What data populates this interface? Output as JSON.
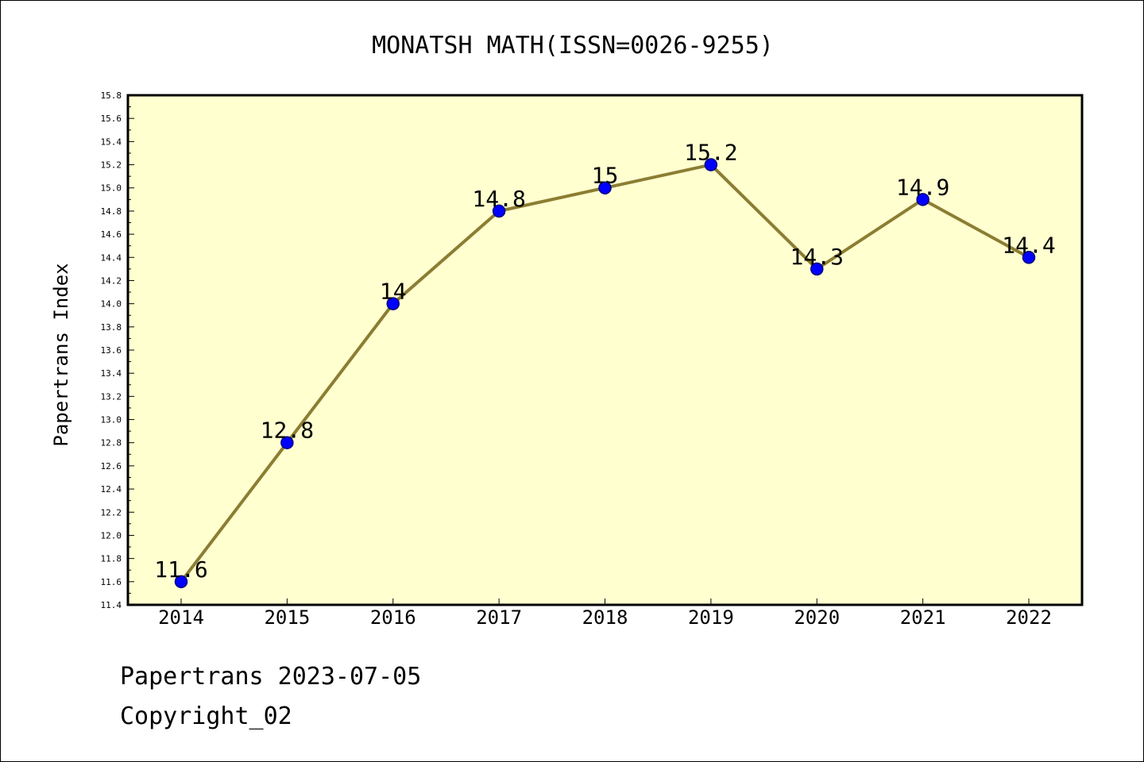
{
  "chart_data": {
    "type": "line",
    "title": "MONATSH MATH(ISSN=0026-9255)",
    "ylabel": "Papertrans Index",
    "xlabel": "",
    "categories": [
      "2014",
      "2015",
      "2016",
      "2017",
      "2018",
      "2019",
      "2020",
      "2021",
      "2022"
    ],
    "series": [
      {
        "values": [
          11.6,
          12.8,
          14.0,
          14.8,
          15.0,
          15.2,
          14.3,
          14.9,
          14.4
        ]
      }
    ],
    "data_labels": [
      "11.6",
      "12.8",
      "14",
      "14.8",
      "15",
      "15.2",
      "14.3",
      "14.9",
      "14.4"
    ],
    "ylim": [
      11.4,
      15.8
    ],
    "yticks": [
      "11.4",
      "11.6",
      "11.8",
      "12.0",
      "12.2",
      "12.4",
      "12.6",
      "12.8",
      "13.0",
      "13.2",
      "13.4",
      "13.6",
      "13.8",
      "14.0",
      "14.2",
      "14.4",
      "14.6",
      "14.8",
      "15.0",
      "15.2",
      "15.4",
      "15.6",
      "15.8"
    ],
    "grid": false,
    "colors": {
      "plot_background": "#ffffd0",
      "line": "#8b7d32",
      "marker": "#0000ff",
      "marker_edge": "#000080"
    }
  },
  "footer": {
    "line1": "Papertrans 2023-07-05",
    "line2": "Copyright_02"
  }
}
